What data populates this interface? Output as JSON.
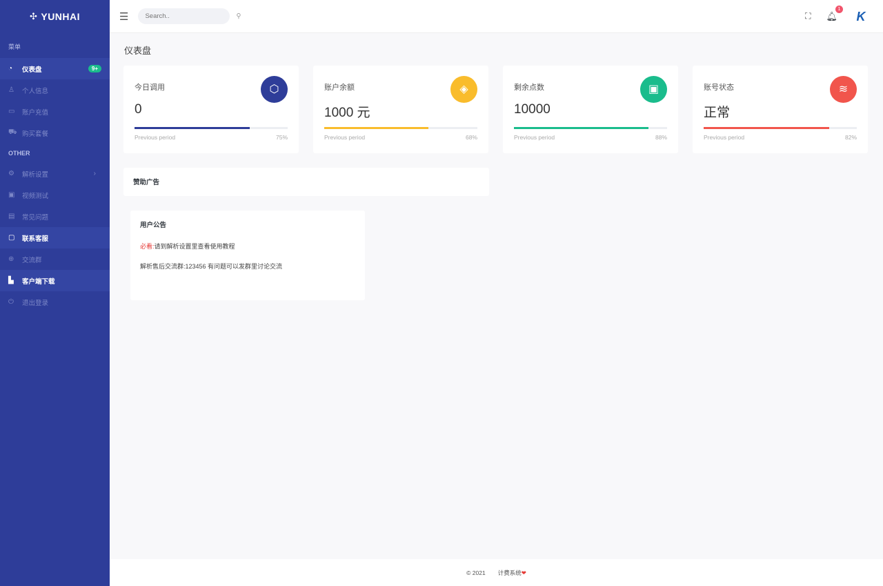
{
  "brand": "YUNHAI",
  "sidebar": {
    "menu_title": "菜单",
    "other_title": "OTHER",
    "items": [
      {
        "label": "仪表盘",
        "icon": "dashboard-icon",
        "active": true,
        "badge": "9+"
      },
      {
        "label": "个人信息",
        "icon": "user-icon"
      },
      {
        "label": "账户充值",
        "icon": "credit-card-icon"
      },
      {
        "label": "购买套餐",
        "icon": "cart-icon"
      },
      {
        "label": "解析设置",
        "icon": "gear-icon",
        "chevron": true
      },
      {
        "label": "视频测试",
        "icon": "video-icon"
      },
      {
        "label": "常见问题",
        "icon": "document-icon"
      },
      {
        "label": "联系客服",
        "icon": "message-icon",
        "active": true
      },
      {
        "label": "交流群",
        "icon": "plus-circle-icon"
      },
      {
        "label": "客户端下载",
        "icon": "file-icon",
        "active": true
      },
      {
        "label": "退出登录",
        "icon": "power-icon"
      }
    ]
  },
  "topbar": {
    "search_placeholder": "Search..",
    "notification_count": "1"
  },
  "page_title": "仪表盘",
  "cards": [
    {
      "title": "今日调用",
      "value": "0",
      "icon": "cube-icon",
      "color": "#2e3d99",
      "progress": 75,
      "progress_label": "75%",
      "foot": "Previous period"
    },
    {
      "title": "账户余额",
      "value": "1000 元",
      "icon": "tag-icon",
      "color": "#f9bc2c",
      "progress": 68,
      "progress_label": "68%",
      "foot": "Previous period"
    },
    {
      "title": "剩余点数",
      "value": "10000",
      "icon": "briefcase-icon",
      "color": "#1abc8c",
      "progress": 88,
      "progress_label": "88%",
      "foot": "Previous period"
    },
    {
      "title": "账号状态",
      "value": "正常",
      "icon": "layers-icon",
      "color": "#f1554c",
      "progress": 82,
      "progress_label": "82%",
      "foot": "Previous period"
    }
  ],
  "ad": {
    "title": "赞助广告"
  },
  "notice": {
    "title": "用户公告",
    "must": "必看:",
    "line1": "请到解析设置里查看使用教程",
    "line2": "解析售后交流群:123456 有问题可以发群里讨论交流"
  },
  "footer": {
    "copyright": "© 2021",
    "system": "计费系统",
    "heart": "❤"
  }
}
